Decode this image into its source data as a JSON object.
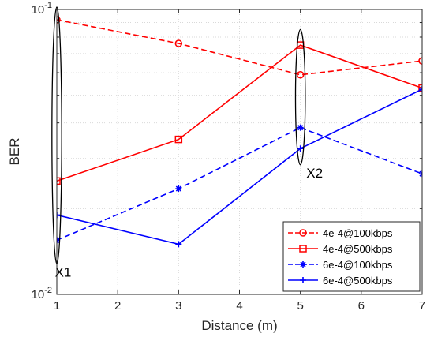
{
  "chart_data": {
    "type": "line",
    "xlabel": "Distance (m)",
    "ylabel": "BER",
    "xlim": [
      1,
      7
    ],
    "ylim": [
      0.01,
      0.1
    ],
    "yscale": "log",
    "grid": true,
    "x_ticks": [
      1,
      2,
      3,
      4,
      5,
      6,
      7
    ],
    "y_ticks": [
      {
        "value": 0.1,
        "base": "10",
        "exp": "-1"
      },
      {
        "value": 0.01,
        "base": "10",
        "exp": "-2"
      }
    ],
    "legend_position": "bottom-right",
    "series": [
      {
        "name": "4e-4@100kbps",
        "x": [
          1,
          3,
          5,
          7
        ],
        "y": [
          0.092,
          0.076,
          0.059,
          0.066
        ],
        "color": "#ff0000",
        "line": "dashed",
        "marker": "circle"
      },
      {
        "name": "4e-4@500kbps",
        "x": [
          1,
          3,
          5,
          7
        ],
        "y": [
          0.025,
          0.035,
          0.075,
          0.053
        ],
        "color": "#ff0000",
        "line": "solid",
        "marker": "square"
      },
      {
        "name": "6e-4@100kbps",
        "x": [
          1,
          3,
          5,
          7
        ],
        "y": [
          0.0155,
          0.0235,
          0.0385,
          0.0265
        ],
        "color": "#0000ff",
        "line": "dashed",
        "marker": "star"
      },
      {
        "name": "6e-4@500kbps",
        "x": [
          1,
          3,
          5,
          7
        ],
        "y": [
          0.019,
          0.015,
          0.0325,
          0.0525
        ],
        "color": "#0000ff",
        "line": "solid",
        "marker": "plus"
      }
    ],
    "annotations": [
      {
        "label": "X1",
        "x": 1,
        "y_center": 0.027,
        "x_halfwidth": 0.08,
        "y_top": 0.102,
        "y_bottom": 0.0128
      },
      {
        "label": "X2",
        "x": 5,
        "y_center": 0.05,
        "x_halfwidth": 0.08,
        "y_top": 0.085,
        "y_bottom": 0.0285
      }
    ]
  }
}
